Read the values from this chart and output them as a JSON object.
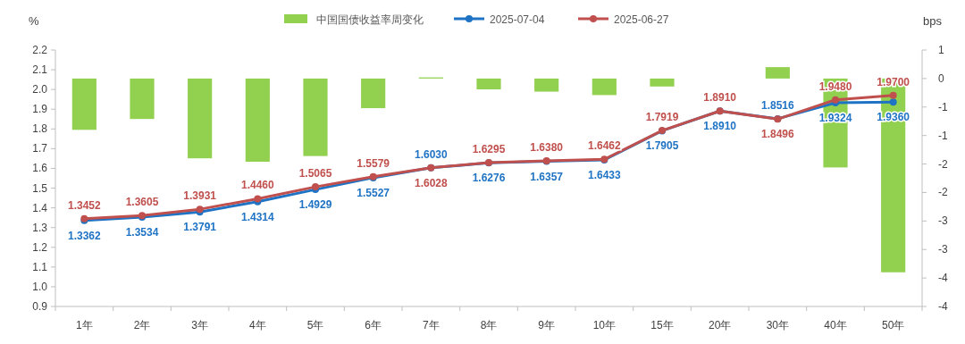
{
  "chart_data": {
    "type": "line",
    "categories": [
      "1年",
      "2年",
      "3年",
      "4年",
      "5年",
      "6年",
      "7年",
      "8年",
      "9年",
      "10年",
      "15年",
      "20年",
      "30年",
      "40年",
      "50年"
    ],
    "ylabel": "%",
    "y2label": "bps",
    "ylim": [
      0.9,
      2.2
    ],
    "yticks": [
      0.9,
      {
        "value": 1,
        "label": "1.0"
      },
      1.1,
      1.2,
      1.3,
      1.4,
      1.5,
      1.6,
      1.7,
      1.8,
      1.9,
      {
        "value": 2,
        "label": "2.0"
      },
      2.1,
      2.2
    ],
    "y2lim": [
      -4,
      0.5
    ],
    "y2ticks": [
      {
        "value": 0.5,
        "label": "1"
      },
      0,
      {
        "value": -0.5,
        "label": "-1"
      },
      -1,
      {
        "value": -1.5,
        "label": "-2"
      },
      -2,
      {
        "value": -2.5,
        "label": "-3"
      },
      -3,
      {
        "value": -3.5,
        "label": "-4"
      },
      -4
    ],
    "legend": "top",
    "marker": "circle",
    "grid": false,
    "series": [
      {
        "type": "bar",
        "axis": "y2",
        "name": "中国国债收益率周变化",
        "color": "#92d050",
        "values": [
          -0.9,
          -0.71,
          -1.4,
          -1.46,
          -1.36,
          -0.52,
          0.02,
          -0.19,
          -0.23,
          -0.29,
          -0.14,
          0,
          0.2,
          -1.56,
          -3.4
        ]
      },
      {
        "name": "2025-07-04",
        "color": "#1f73c4",
        "values": [
          1.3362,
          1.3534,
          1.3791,
          1.4314,
          1.4929,
          1.5527,
          1.603,
          1.6276,
          1.6357,
          1.6433,
          1.7905,
          1.891,
          1.8516,
          1.9324,
          1.936
        ],
        "value_labels": [
          "1.3362",
          "1.3534",
          "1.3791",
          "1.4314",
          "1.4929",
          "1.5527",
          "1.6030",
          "1.6276",
          "1.6357",
          "1.6433",
          "1.7905",
          "1.8910",
          "1.8516",
          "1.9324",
          "1.9360"
        ]
      },
      {
        "name": "2025-06-27",
        "color": "#c0504d",
        "values": [
          1.3452,
          1.3605,
          1.3931,
          1.446,
          1.5065,
          1.5579,
          1.6028,
          1.6295,
          1.638,
          1.6462,
          1.7919,
          1.891,
          1.8496,
          1.948,
          1.97
        ],
        "value_labels": [
          "1.3452",
          "1.3605",
          "1.3931",
          "1.4460",
          "1.5065",
          "1.5579",
          "1.6028",
          "1.6295",
          "1.6380",
          "1.6462",
          "1.7919",
          "1.8910",
          "1.8496",
          "1.9480",
          "1.9700"
        ]
      }
    ]
  }
}
